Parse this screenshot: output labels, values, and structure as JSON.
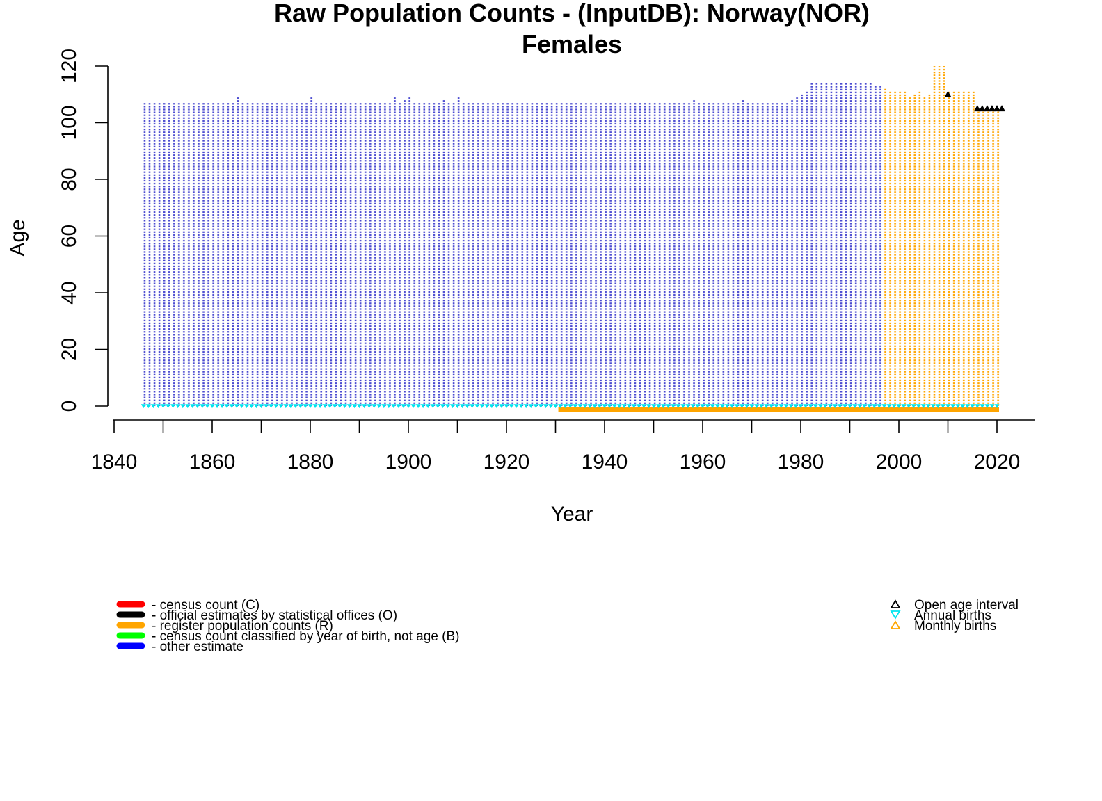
{
  "chart_data": {
    "type": "scatter",
    "title": "Raw Population Counts - (InputDB): Norway(NOR)",
    "subtitle": "Females",
    "xlabel": "Year",
    "ylabel": "Age",
    "xlim": [
      1840,
      2028
    ],
    "ylim": [
      0,
      120
    ],
    "x_ticks": [
      1840,
      1860,
      1880,
      1900,
      1920,
      1940,
      1960,
      1980,
      2000,
      2020
    ],
    "y_ticks": [
      0,
      20,
      40,
      60,
      80,
      100,
      120
    ],
    "grid": false,
    "colors": {
      "C": "#ff0000",
      "O": "#000000",
      "R": "#ffa500",
      "B": "#00ff00",
      "other": "#0000ff",
      "dense_blue": "#5555cc",
      "open_age": "#000000",
      "annual_births": "#00e5ee",
      "monthly_births": "#ffa500"
    },
    "series": [
      {
        "name": "- other estimate",
        "type_code": "other",
        "years_from": 1846,
        "years_to": 1996,
        "max_age_default": 107,
        "max_age_exceptions": [
          [
            1865,
            109
          ],
          [
            1880,
            109
          ],
          [
            1897,
            109
          ],
          [
            1899,
            108
          ],
          [
            1900,
            109
          ],
          [
            1907,
            108
          ],
          [
            1910,
            109
          ],
          [
            1958,
            108
          ],
          [
            1968,
            108
          ],
          [
            1978,
            108
          ],
          [
            1979,
            109
          ],
          [
            1980,
            110
          ],
          [
            1981,
            111
          ],
          [
            1982,
            114
          ],
          [
            1983,
            114
          ],
          [
            1984,
            114
          ],
          [
            1985,
            114
          ],
          [
            1986,
            114
          ],
          [
            1987,
            114
          ],
          [
            1988,
            114
          ],
          [
            1989,
            114
          ],
          [
            1990,
            114
          ],
          [
            1991,
            114
          ],
          [
            1992,
            114
          ],
          [
            1993,
            114
          ],
          [
            1994,
            114
          ],
          [
            1995,
            113
          ],
          [
            1996,
            113
          ]
        ]
      },
      {
        "name": "- register population counts (R)",
        "type_code": "R",
        "years_from": 1997,
        "years_to": 2020,
        "max_ages": [
          [
            1997,
            112
          ],
          [
            1998,
            111
          ],
          [
            1999,
            111
          ],
          [
            2000,
            111
          ],
          [
            2001,
            111
          ],
          [
            2002,
            109
          ],
          [
            2003,
            110
          ],
          [
            2004,
            111
          ],
          [
            2005,
            109
          ],
          [
            2006,
            110
          ],
          [
            2007,
            120
          ],
          [
            2008,
            120
          ],
          [
            2009,
            120
          ],
          [
            2010,
            111
          ],
          [
            2011,
            111
          ],
          [
            2012,
            111
          ],
          [
            2013,
            111
          ],
          [
            2014,
            111
          ],
          [
            2015,
            111
          ],
          [
            2016,
            105
          ],
          [
            2017,
            105
          ],
          [
            2018,
            105
          ],
          [
            2019,
            105
          ],
          [
            2020,
            105
          ]
        ]
      }
    ],
    "open_age_interval": [
      [
        2010,
        110
      ],
      [
        2016,
        105
      ],
      [
        2017,
        105
      ],
      [
        2018,
        105
      ],
      [
        2019,
        105
      ],
      [
        2020,
        105
      ],
      [
        2021,
        105
      ]
    ],
    "annual_births": {
      "years_from": 1846,
      "years_to": 2020,
      "age": 0
    },
    "monthly_births": {
      "years_from": 1931,
      "years_to": 2020,
      "age": -1.2
    },
    "legend_left": [
      {
        "label": "- census count (C)",
        "color": "#ff0000"
      },
      {
        "label": "- official estimates by statistical offices (O)",
        "color": "#000000"
      },
      {
        "label": "- register population counts (R)",
        "color": "#ffa500"
      },
      {
        "label": "- census count classified by year of birth, not age (B)",
        "color": "#00ff00"
      },
      {
        "label": "- other estimate",
        "color": "#0000ff"
      }
    ],
    "legend_right": [
      {
        "label": "Open age interval",
        "symbol": "triangle-up",
        "color": "#000000"
      },
      {
        "label": "Annual births",
        "symbol": "triangle-down",
        "color": "#00e5ee"
      },
      {
        "label": "Monthly births",
        "symbol": "triangle-up",
        "color": "#ffa500"
      }
    ]
  }
}
